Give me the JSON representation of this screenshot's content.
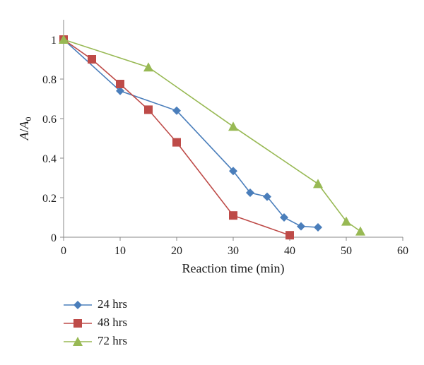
{
  "chart_data": {
    "type": "line",
    "title": "",
    "xlabel": "Reaction time (min)",
    "ylabel_main": "A",
    "ylabel_sep": "/",
    "ylabel_sub_base": "A",
    "ylabel_sub": "0",
    "xlim": [
      0,
      60
    ],
    "ylim": [
      0,
      1.1
    ],
    "x_ticks": [
      0,
      10,
      20,
      30,
      40,
      50,
      60
    ],
    "y_ticks": [
      {
        "value": 0,
        "label": "0"
      },
      {
        "value": 0.2,
        "label": "0.2"
      },
      {
        "value": 0.4,
        "label": "0.4"
      },
      {
        "value": 0.6,
        "label": "0.6"
      },
      {
        "value": 0.8,
        "label": "0.8"
      },
      {
        "value": 1,
        "label": "1"
      }
    ],
    "grid": false,
    "legend_position": "bottom-left",
    "series": [
      {
        "name": "24 hrs",
        "color": "#4a7ebb",
        "marker": "diamond",
        "x": [
          0,
          10,
          20,
          30,
          33,
          36,
          39,
          42,
          45
        ],
        "y": [
          1.0,
          0.74,
          0.64,
          0.335,
          0.225,
          0.205,
          0.1,
          0.055,
          0.05
        ]
      },
      {
        "name": "48 hrs",
        "color": "#be4b48",
        "marker": "square",
        "x": [
          0,
          5,
          10,
          15,
          20,
          30,
          40
        ],
        "y": [
          1.0,
          0.9,
          0.775,
          0.645,
          0.48,
          0.11,
          0.01
        ]
      },
      {
        "name": "72 hrs",
        "color": "#98b954",
        "marker": "triangle",
        "x": [
          0,
          15,
          30,
          45,
          50,
          52.5
        ],
        "y": [
          1.0,
          0.86,
          0.56,
          0.27,
          0.08,
          0.03
        ]
      }
    ]
  }
}
